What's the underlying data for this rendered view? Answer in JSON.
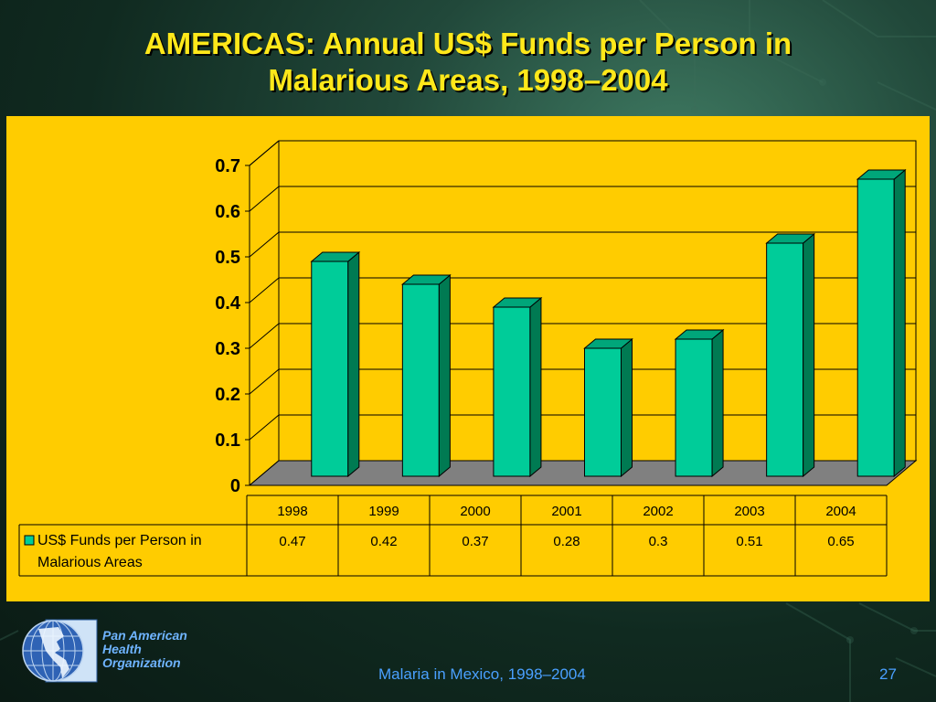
{
  "slide": {
    "title_line1": "AMERICAS: Annual US$ Funds per Person in",
    "title_line2": "Malarious Areas, 1998–2004",
    "footer": "Malaria in Mexico, 1998–2004",
    "page_number": "27",
    "org_name_lines": [
      "Pan American",
      "Health",
      "Organization"
    ],
    "logo_icon": "globe-americas-icon"
  },
  "colors": {
    "panel_bg": "#ffcc00",
    "bar_front": "#00cc99",
    "bar_side": "#007a52",
    "bar_top": "#00a67a",
    "floor": "#808080",
    "title": "#ffe81a",
    "footer": "#4aa0ff"
  },
  "chart_data": {
    "type": "bar",
    "categories": [
      "1998",
      "1999",
      "2000",
      "2001",
      "2002",
      "2003",
      "2004"
    ],
    "series": [
      {
        "name": "US$ Funds per Person in Malarious Areas",
        "name_lines": [
          "US$ Funds per Person in",
          "Malarious Areas"
        ],
        "values": [
          0.47,
          0.42,
          0.37,
          0.28,
          0.3,
          0.51,
          0.65
        ],
        "value_labels": [
          "0.47",
          "0.42",
          "0.37",
          "0.28",
          "0.3",
          "0.51",
          "0.65"
        ]
      }
    ],
    "yticks": [
      "0",
      "0.1",
      "0.2",
      "0.3",
      "0.4",
      "0.5",
      "0.6",
      "0.7"
    ],
    "ylim": [
      0,
      0.7
    ],
    "grid": true,
    "three_d": true,
    "data_table": true
  }
}
